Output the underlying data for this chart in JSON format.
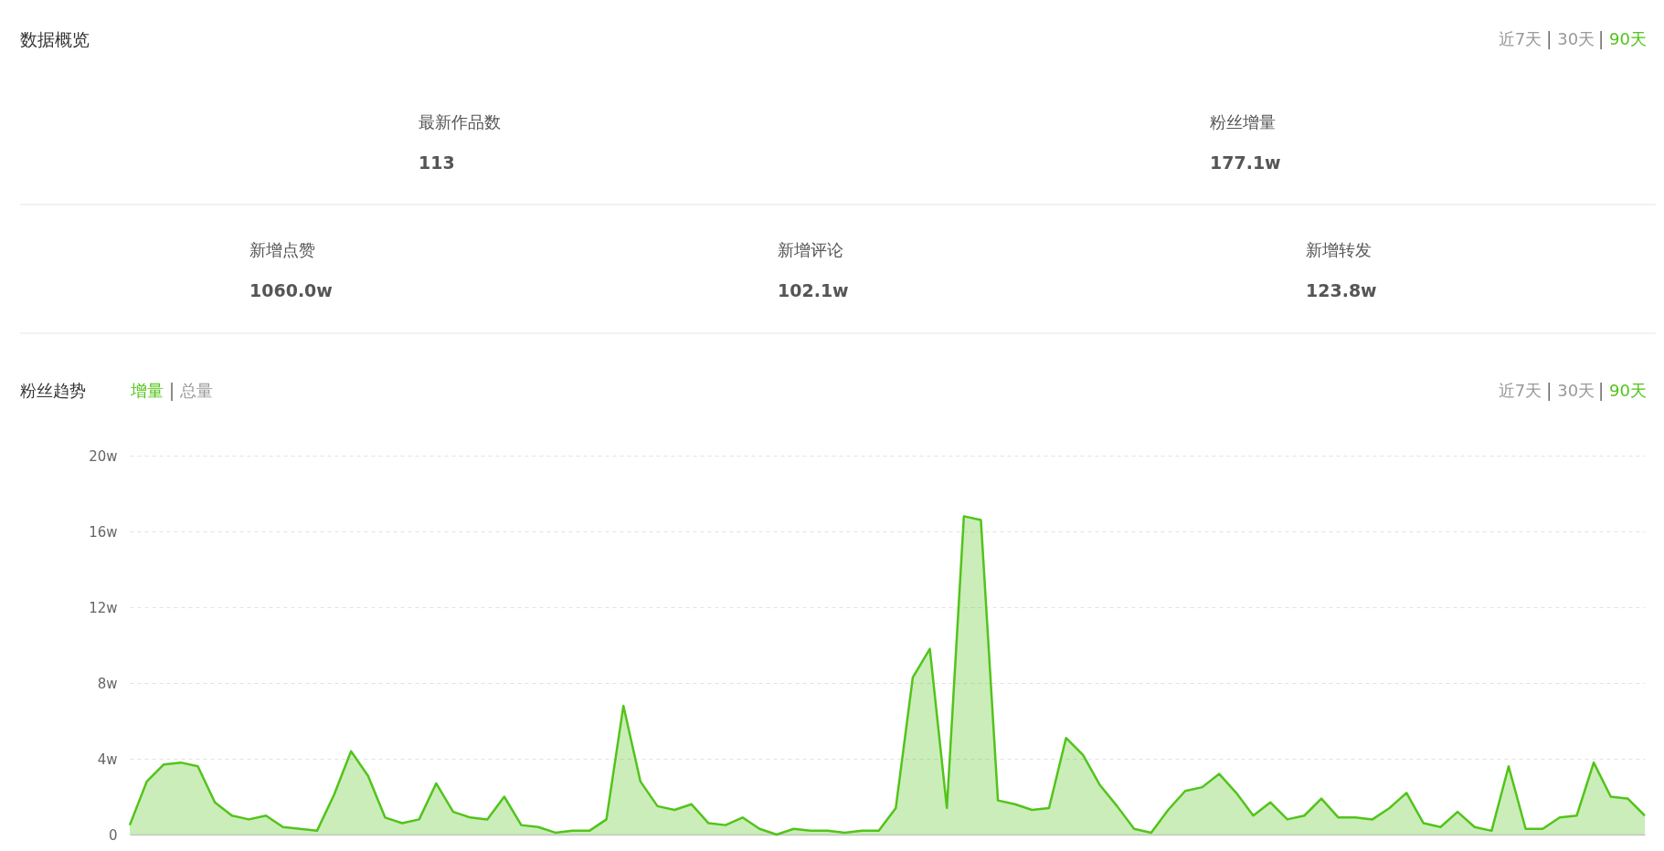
{
  "chart_data": [
    {
      "type": "other",
      "title": "数据概览",
      "annotations": [
        "近7天",
        "30天",
        "90天",
        "最新作品数",
        "113",
        "粉丝增量",
        "177.1w",
        "新增点赞",
        "1060.0w",
        "新增评论",
        "102.1w",
        "新增转发",
        "123.8w"
      ]
    },
    {
      "type": "area",
      "title": "粉丝趋势",
      "annotations": [
        "增量",
        "总量",
        "近7天",
        "30天",
        "90天"
      ],
      "categories": [
        null,
        null,
        null,
        null,
        null,
        null,
        null,
        null,
        null,
        null,
        null,
        null,
        null,
        null,
        null,
        null,
        null,
        null,
        null,
        null,
        null,
        null,
        null,
        null,
        null,
        null,
        null,
        null,
        null,
        null,
        null,
        null,
        null,
        null,
        null,
        null,
        null,
        null,
        null,
        null,
        null,
        null,
        null,
        null,
        null,
        null,
        null,
        null,
        null,
        null,
        null,
        null,
        null,
        null,
        null,
        null,
        null,
        null,
        null,
        null,
        null,
        null,
        null,
        null,
        null,
        null,
        null,
        null,
        null,
        null,
        null,
        null,
        null,
        null,
        null,
        null,
        null,
        null,
        null,
        null,
        null,
        null,
        null,
        null,
        null,
        null,
        null,
        null,
        null,
        null
      ],
      "values": [
        0.5,
        2.8,
        3.7,
        3.8,
        3.6,
        1.7,
        1.0,
        0.8,
        1.0,
        0.4,
        0.3,
        0.2,
        2.1,
        4.4,
        3.1,
        0.9,
        0.6,
        0.8,
        2.7,
        1.2,
        0.9,
        0.8,
        2.0,
        0.5,
        0.4,
        0.1,
        0.2,
        0.2,
        0.8,
        6.8,
        2.8,
        1.5,
        1.3,
        1.6,
        0.6,
        0.5,
        0.9,
        0.3,
        0.0,
        0.3,
        0.2,
        0.2,
        0.1,
        0.2,
        0.2,
        1.4,
        8.3,
        9.8,
        1.4,
        16.8,
        16.6,
        1.8,
        1.6,
        1.3,
        1.4,
        5.1,
        4.2,
        2.6,
        1.5,
        0.3,
        0.1,
        1.3,
        2.3,
        2.5,
        3.2,
        2.2,
        1.0,
        1.7,
        0.8,
        1.0,
        1.9,
        0.9,
        0.9,
        0.8,
        1.4,
        2.2,
        0.6,
        0.4,
        1.2,
        0.4,
        0.2,
        3.6,
        0.3,
        0.3,
        0.9,
        1.0,
        3.8,
        2.0,
        1.9,
        1.0
      ],
      "color": "#52c41a",
      "ylim": [
        0,
        20
      ],
      "yticks": [
        0,
        {
          "value": 4,
          "label": "4w"
        },
        {
          "value": 8,
          "label": "8w"
        },
        {
          "value": 12,
          "label": "12w"
        },
        {
          "value": 16,
          "label": "16w"
        },
        {
          "value": 20,
          "label": "20w"
        }
      ],
      "grid": "y",
      "tick_labels": "y"
    }
  ]
}
